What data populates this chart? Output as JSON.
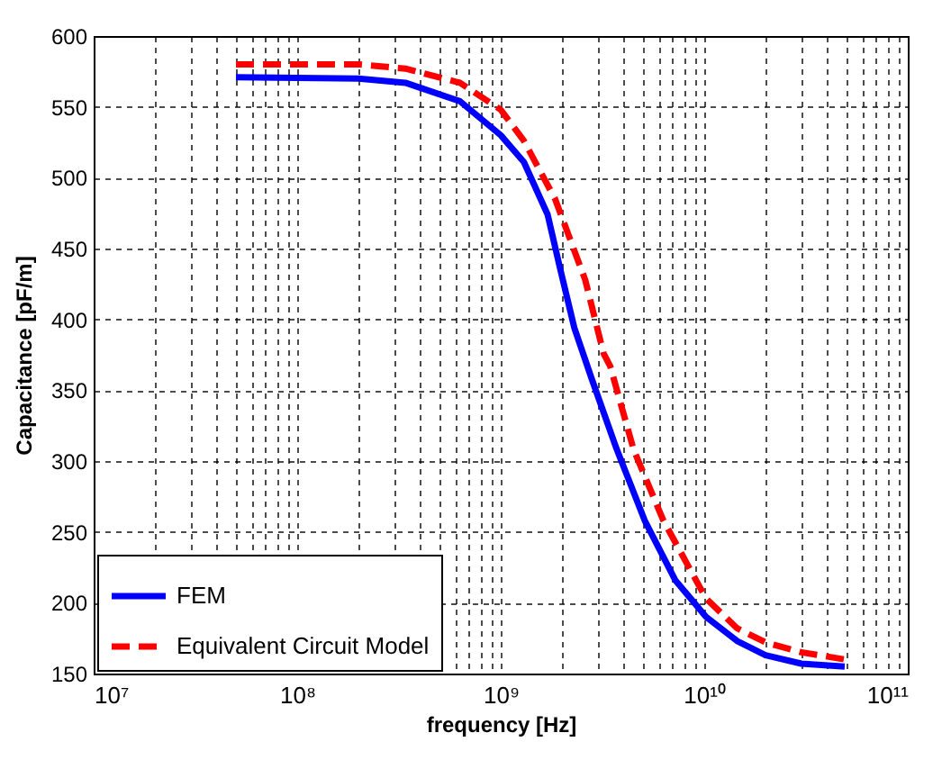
{
  "chart_data": {
    "type": "line",
    "xlabel": "frequency [Hz]",
    "ylabel": "Capacitance [pF/m]",
    "log": "x",
    "grid": true,
    "legend": "bottom left",
    "xlim": [
      10000000,
      100000000000
    ],
    "xticks": [
      {
        "value": 10000000,
        "label": "10⁷"
      },
      {
        "value": 100000000,
        "label": "10⁸"
      },
      {
        "value": 1000000000,
        "label": "10⁹"
      },
      {
        "value": 10000000000,
        "label": "10¹⁰"
      },
      {
        "value": 100000000000,
        "label": "10¹¹"
      }
    ],
    "ylim": [
      150,
      600
    ],
    "yticks": [
      150,
      200,
      250,
      300,
      350,
      400,
      450,
      500,
      550,
      600
    ],
    "series": [
      {
        "name": "FEM",
        "color": "#0000ff",
        "line_style": "solid",
        "x": [
          50000000,
          200000000,
          340000000,
          630000000,
          1000000000,
          1300000000,
          1700000000,
          1950000000,
          2300000000,
          2800000000,
          3700000000,
          5100000000,
          7200000000,
          10200000000,
          14500000000,
          20000000000,
          30000000000,
          49000000000
        ],
        "values": [
          571,
          570,
          567,
          554,
          530,
          511,
          474,
          437,
          394,
          358,
          309,
          258,
          216,
          190,
          173,
          163,
          157,
          155
        ]
      },
      {
        "name": "Equivalent Circuit Model",
        "color": "#ff0000",
        "line_style": "dashed",
        "x": [
          50000000,
          200000000,
          340000000,
          630000000,
          1000000000,
          1300000000,
          1850000000,
          2600000000,
          3200000000,
          3450000000,
          4500000000,
          6300000000,
          10200000000,
          14500000000,
          20000000000,
          30000000000,
          49000000000
        ],
        "values": [
          580,
          580,
          577,
          567,
          548,
          526,
          485,
          428,
          376,
          367,
          308,
          258,
          203,
          182,
          172,
          165,
          160
        ]
      }
    ]
  }
}
